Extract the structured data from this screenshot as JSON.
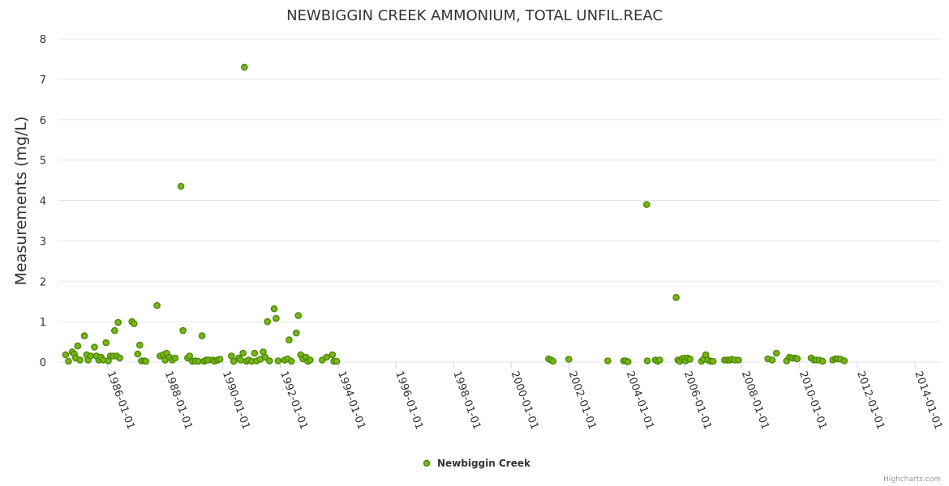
{
  "chart_data": {
    "type": "scatter",
    "title": "NEWBIGGIN CREEK AMMONIUM, TOTAL UNFIL.REAC",
    "xlabel": "",
    "ylabel": "Measurements (mg/L)",
    "ylim": [
      0,
      8
    ],
    "yticks": [
      "0",
      "1",
      "2",
      "3",
      "4",
      "5",
      "6",
      "7",
      "8"
    ],
    "xlim": [
      1984.3,
      2014.9
    ],
    "xticks": [
      {
        "value": 1986,
        "label": "1986-01-01"
      },
      {
        "value": 1988,
        "label": "1988-01-01"
      },
      {
        "value": 1990,
        "label": "1990-01-01"
      },
      {
        "value": 1992,
        "label": "1992-01-01"
      },
      {
        "value": 1994,
        "label": "1994-01-01"
      },
      {
        "value": 1996,
        "label": "1996-01-01"
      },
      {
        "value": 1998,
        "label": "1998-01-01"
      },
      {
        "value": 2000,
        "label": "2000-01-01"
      },
      {
        "value": 2002,
        "label": "2002-01-01"
      },
      {
        "value": 2004,
        "label": "2004-01-01"
      },
      {
        "value": 2006,
        "label": "2006-01-01"
      },
      {
        "value": 2008,
        "label": "2008-01-01"
      },
      {
        "value": 2010,
        "label": "2010-01-01"
      },
      {
        "value": 2012,
        "label": "2012-01-01"
      },
      {
        "value": 2014,
        "label": "2014-01-01"
      }
    ],
    "grid": true,
    "legend_position": "bottom-center",
    "series": [
      {
        "name": "Newbiggin Creek",
        "color": "#4a8a00",
        "fill": "#7cb518",
        "points": [
          [
            1984.55,
            0.18
          ],
          [
            1984.65,
            0.02
          ],
          [
            1984.78,
            0.25
          ],
          [
            1984.85,
            0.2
          ],
          [
            1984.9,
            0.1
          ],
          [
            1984.97,
            0.4
          ],
          [
            1985.05,
            0.05
          ],
          [
            1985.2,
            0.65
          ],
          [
            1985.28,
            0.18
          ],
          [
            1985.33,
            0.05
          ],
          [
            1985.42,
            0.15
          ],
          [
            1985.55,
            0.37
          ],
          [
            1985.62,
            0.15
          ],
          [
            1985.7,
            0.05
          ],
          [
            1985.78,
            0.12
          ],
          [
            1985.85,
            0.05
          ],
          [
            1985.95,
            0.48
          ],
          [
            1986.03,
            0.03
          ],
          [
            1986.1,
            0.15
          ],
          [
            1986.2,
            0.15
          ],
          [
            1986.25,
            0.78
          ],
          [
            1986.32,
            0.15
          ],
          [
            1986.37,
            0.98
          ],
          [
            1986.43,
            0.1
          ],
          [
            1986.85,
            1.0
          ],
          [
            1986.92,
            0.95
          ],
          [
            1987.05,
            0.2
          ],
          [
            1987.12,
            0.42
          ],
          [
            1987.18,
            0.03
          ],
          [
            1987.28,
            0.03
          ],
          [
            1987.33,
            0.02
          ],
          [
            1987.72,
            1.4
          ],
          [
            1987.82,
            0.15
          ],
          [
            1987.93,
            0.18
          ],
          [
            1988.0,
            0.05
          ],
          [
            1988.05,
            0.22
          ],
          [
            1988.15,
            0.12
          ],
          [
            1988.25,
            0.05
          ],
          [
            1988.35,
            0.1
          ],
          [
            1988.55,
            4.35
          ],
          [
            1988.62,
            0.78
          ],
          [
            1988.78,
            0.1
          ],
          [
            1988.85,
            0.15
          ],
          [
            1988.95,
            0.02
          ],
          [
            1989.05,
            0.03
          ],
          [
            1989.15,
            0.02
          ],
          [
            1989.28,
            0.65
          ],
          [
            1989.35,
            0.02
          ],
          [
            1989.42,
            0.05
          ],
          [
            1989.5,
            0.05
          ],
          [
            1989.65,
            0.05
          ],
          [
            1989.72,
            0.02
          ],
          [
            1989.82,
            0.05
          ],
          [
            1989.9,
            0.07
          ],
          [
            1990.3,
            0.15
          ],
          [
            1990.38,
            0.02
          ],
          [
            1990.55,
            0.1
          ],
          [
            1990.62,
            0.05
          ],
          [
            1990.7,
            0.22
          ],
          [
            1990.75,
            7.3
          ],
          [
            1990.82,
            0.02
          ],
          [
            1990.9,
            0.05
          ],
          [
            1991.0,
            0.02
          ],
          [
            1991.1,
            0.22
          ],
          [
            1991.18,
            0.03
          ],
          [
            1991.3,
            0.07
          ],
          [
            1991.4,
            0.25
          ],
          [
            1991.47,
            0.12
          ],
          [
            1991.55,
            1.0
          ],
          [
            1991.62,
            0.03
          ],
          [
            1991.78,
            1.32
          ],
          [
            1991.85,
            1.08
          ],
          [
            1991.92,
            0.03
          ],
          [
            1992.15,
            0.05
          ],
          [
            1992.25,
            0.08
          ],
          [
            1992.3,
            0.55
          ],
          [
            1992.38,
            0.02
          ],
          [
            1992.55,
            0.72
          ],
          [
            1992.62,
            1.15
          ],
          [
            1992.7,
            0.18
          ],
          [
            1992.78,
            0.08
          ],
          [
            1992.88,
            0.12
          ],
          [
            1992.95,
            0.02
          ],
          [
            1993.03,
            0.05
          ],
          [
            1993.45,
            0.05
          ],
          [
            1993.6,
            0.12
          ],
          [
            1993.8,
            0.18
          ],
          [
            1993.85,
            0.02
          ],
          [
            1993.95,
            0.02
          ],
          [
            2001.3,
            0.08
          ],
          [
            2001.38,
            0.05
          ],
          [
            2001.45,
            0.02
          ],
          [
            2002.0,
            0.07
          ],
          [
            2003.35,
            0.03
          ],
          [
            2003.9,
            0.03
          ],
          [
            2003.97,
            0.03
          ],
          [
            2004.05,
            0.01
          ],
          [
            2004.7,
            3.9
          ],
          [
            2004.72,
            0.03
          ],
          [
            2005.0,
            0.05
          ],
          [
            2005.08,
            0.02
          ],
          [
            2005.15,
            0.05
          ],
          [
            2005.72,
            1.6
          ],
          [
            2005.78,
            0.05
          ],
          [
            2005.85,
            0.02
          ],
          [
            2005.92,
            0.08
          ],
          [
            2006.0,
            0.1
          ],
          [
            2006.05,
            0.03
          ],
          [
            2006.12,
            0.1
          ],
          [
            2006.2,
            0.07
          ],
          [
            2006.6,
            0.02
          ],
          [
            2006.68,
            0.08
          ],
          [
            2006.75,
            0.18
          ],
          [
            2006.82,
            0.05
          ],
          [
            2006.92,
            0.02
          ],
          [
            2007.0,
            0.02
          ],
          [
            2007.4,
            0.05
          ],
          [
            2007.5,
            0.05
          ],
          [
            2007.58,
            0.05
          ],
          [
            2007.65,
            0.07
          ],
          [
            2007.75,
            0.05
          ],
          [
            2007.88,
            0.05
          ],
          [
            2008.9,
            0.08
          ],
          [
            2009.05,
            0.05
          ],
          [
            2009.2,
            0.22
          ],
          [
            2009.55,
            0.03
          ],
          [
            2009.65,
            0.12
          ],
          [
            2009.75,
            0.1
          ],
          [
            2009.85,
            0.1
          ],
          [
            2009.92,
            0.08
          ],
          [
            2010.4,
            0.1
          ],
          [
            2010.5,
            0.05
          ],
          [
            2010.58,
            0.05
          ],
          [
            2010.68,
            0.05
          ],
          [
            2010.8,
            0.02
          ],
          [
            2011.15,
            0.05
          ],
          [
            2011.25,
            0.08
          ],
          [
            2011.32,
            0.08
          ],
          [
            2011.42,
            0.07
          ],
          [
            2011.55,
            0.03
          ]
        ]
      }
    ]
  },
  "credits": "Highcharts.com"
}
